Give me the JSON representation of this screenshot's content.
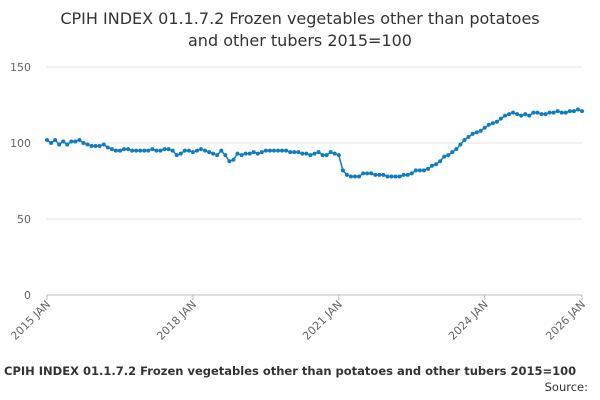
{
  "chart_data": {
    "type": "line",
    "title": "CPIH INDEX 01.1.7.2 Frozen vegetables other than potatoes and other tubers 2015=100",
    "footer_title": "CPIH INDEX 01.1.7.2 Frozen vegetables other than potatoes and other tubers 2015=100",
    "source": "Source:",
    "color": "#0f7cc0",
    "ylim": [
      0,
      150
    ],
    "yticks": [
      0,
      50,
      100,
      150
    ],
    "grid": true,
    "categories": [
      "2015 JAN",
      null,
      null,
      null,
      null,
      null,
      null,
      null,
      null,
      null,
      null,
      null,
      null,
      null,
      null,
      null,
      null,
      null,
      null,
      null,
      null,
      null,
      null,
      null,
      null,
      null,
      null,
      null,
      null,
      null,
      null,
      null,
      null,
      null,
      null,
      null,
      "2018 JAN",
      null,
      null,
      null,
      null,
      null,
      null,
      null,
      null,
      null,
      null,
      null,
      null,
      null,
      null,
      null,
      null,
      null,
      null,
      null,
      null,
      null,
      null,
      null,
      null,
      null,
      null,
      null,
      null,
      null,
      null,
      null,
      null,
      null,
      null,
      null,
      "2021 JAN",
      null,
      null,
      null,
      null,
      null,
      null,
      null,
      null,
      null,
      null,
      null,
      null,
      null,
      null,
      null,
      null,
      null,
      null,
      null,
      null,
      null,
      null,
      null,
      null,
      null,
      null,
      null,
      null,
      null,
      null,
      null,
      null,
      null,
      null,
      null,
      "2024 JAN",
      null,
      null,
      null,
      null,
      null,
      null,
      null,
      null,
      null,
      null,
      null,
      null,
      null,
      null,
      null,
      null,
      null,
      null,
      null,
      null,
      null,
      null,
      null,
      "2026 JAN"
    ],
    "values": [
      102,
      100,
      102,
      99,
      101,
      99,
      101,
      101,
      102,
      100,
      99,
      98,
      98,
      98,
      99,
      97,
      96,
      95,
      95,
      96,
      96,
      95,
      95,
      95,
      95,
      95,
      96,
      95,
      95,
      96,
      96,
      95,
      92,
      93,
      95,
      95,
      94,
      95,
      96,
      95,
      94,
      93,
      92,
      95,
      92,
      88,
      89,
      93,
      92,
      93,
      93,
      94,
      93,
      94,
      95,
      95,
      95,
      95,
      95,
      95,
      94,
      94,
      94,
      93,
      93,
      92,
      93,
      94,
      92,
      92,
      94,
      93,
      92,
      82,
      79,
      78,
      78,
      78,
      80,
      80,
      80,
      79,
      79,
      79,
      78,
      78,
      78,
      78,
      79,
      79,
      80,
      82,
      82,
      82,
      83,
      85,
      86,
      88,
      91,
      92,
      94,
      96,
      99,
      102,
      104,
      106,
      107,
      108,
      110,
      112,
      113,
      114,
      116,
      118,
      119,
      120,
      119,
      118,
      119,
      118,
      120,
      120,
      119,
      119,
      120,
      120,
      121,
      120,
      120,
      121,
      121,
      122,
      121
    ]
  }
}
